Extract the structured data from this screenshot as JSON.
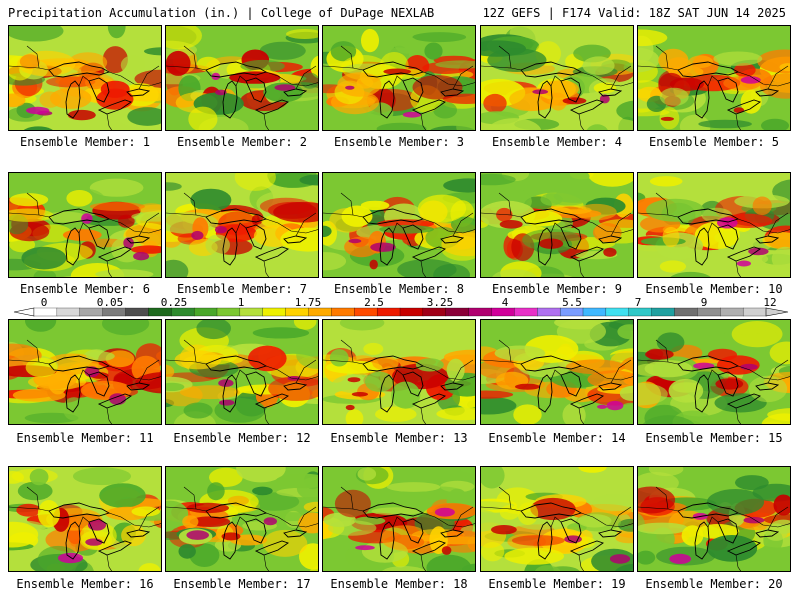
{
  "header": {
    "title": "Precipitation Accumulation (in.) | College of DuPage NEXLAB",
    "run_info": "12Z GEFS | F174 Valid: 18Z SAT JUN 14 2025"
  },
  "colorbar": {
    "labels": [
      "0",
      "0.05",
      "0.25",
      "1",
      "1.75",
      "2.5",
      "3.25",
      "4",
      "5.5",
      "7",
      "9",
      "12"
    ],
    "colors": [
      "#ffffff",
      "#d8d8d8",
      "#a8a8a8",
      "#7c7c7c",
      "#4f4f4f",
      "#1f6a1f",
      "#2e8b2e",
      "#4aa82a",
      "#7cc832",
      "#b4e03c",
      "#eef000",
      "#ffd200",
      "#ffaa00",
      "#ff7a00",
      "#ff4a00",
      "#ee1a00",
      "#c80000",
      "#a00018",
      "#8a0038",
      "#b00070",
      "#d0009a",
      "#e830c8",
      "#b070f0",
      "#7a9cff",
      "#40b8ff",
      "#40e0f0",
      "#30c8c8",
      "#20a0a0",
      "#707070",
      "#909090",
      "#b0b0b0",
      "#d0d0d0"
    ]
  },
  "members": [
    {
      "caption": "Ensemble Member: 1"
    },
    {
      "caption": "Ensemble Member: 2"
    },
    {
      "caption": "Ensemble Member: 3"
    },
    {
      "caption": "Ensemble Member: 4"
    },
    {
      "caption": "Ensemble Member: 5"
    },
    {
      "caption": "Ensemble Member: 6"
    },
    {
      "caption": "Ensemble Member: 7"
    },
    {
      "caption": "Ensemble Member: 8"
    },
    {
      "caption": "Ensemble Member: 9"
    },
    {
      "caption": "Ensemble Member: 10"
    },
    {
      "caption": "Ensemble Member: 11"
    },
    {
      "caption": "Ensemble Member: 12"
    },
    {
      "caption": "Ensemble Member: 13"
    },
    {
      "caption": "Ensemble Member: 14"
    },
    {
      "caption": "Ensemble Member: 15"
    },
    {
      "caption": "Ensemble Member: 16"
    },
    {
      "caption": "Ensemble Member: 17"
    },
    {
      "caption": "Ensemble Member: 18"
    },
    {
      "caption": "Ensemble Member: 19"
    },
    {
      "caption": "Ensemble Member: 20"
    }
  ]
}
